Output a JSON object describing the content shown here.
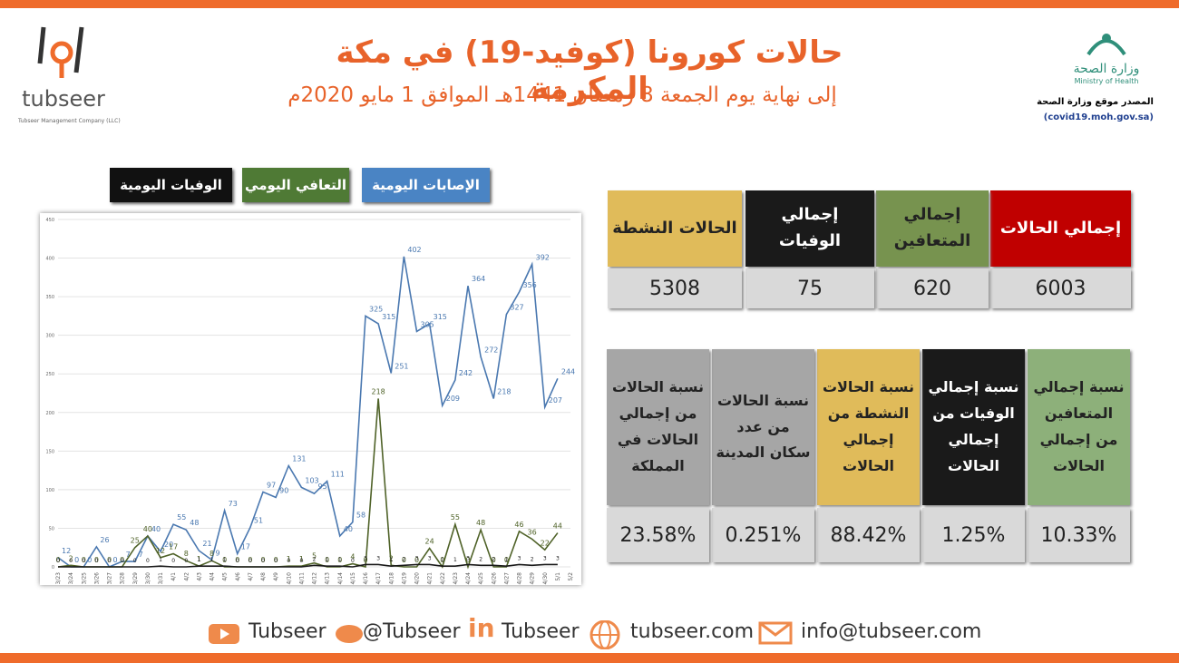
{
  "header": {
    "title": "حالات كورونا (كوفيد-19) في مكة المكرمة",
    "subtitle": "إلى نهاية يوم الجمعة 8 رمضان 1441هـ الموافق 1 مايو 2020م",
    "logo": "tubseer",
    "logo_sub": "Tubseer Management Company (LLC)",
    "ministry_ar": "وزارة الصحة",
    "ministry_en": "Ministry of Health",
    "source": "المصدر موقع وزارة الصحة",
    "source_url": "(covid19.moh.gov.sa)"
  },
  "stats": [
    {
      "label": "إجمالي الحالات",
      "value": "6003",
      "color": "#c00000"
    },
    {
      "label": "إجمالي المتعافين",
      "value": "620",
      "color": "#77934f"
    },
    {
      "label": "إجمالي الوفيات",
      "value": "75",
      "color": "#1a1a1a"
    },
    {
      "label": "الحالات النشطة",
      "value": "5308",
      "color": "#e0bb5a"
    }
  ],
  "ratios": [
    {
      "label": "نسبة إجمالي المتعافين من إجمالي الحالات",
      "value": "10.33%",
      "color": "#8db07a"
    },
    {
      "label": "نسبة إجمالي الوفيات من إجمالي الحالات",
      "value": "1.25%",
      "color": "#1a1a1a"
    },
    {
      "label": "نسبة الحالات النشطة من إجمالي الحالات",
      "value": "88.42%",
      "color": "#e0bb5a"
    },
    {
      "label": "نسبة الحالات من عدد سكان المدينة",
      "value": "0.251%",
      "color": "#a6a6a6"
    },
    {
      "label": "نسبة الحالات من إجمالي الحالات في المملكة",
      "value": "23.58%",
      "color": "#a6a6a6"
    }
  ],
  "footer": [
    "Tubseer",
    "@Tubseer",
    "Tubseer",
    "tubseer.com",
    "info@tubseer.com"
  ],
  "chart_data": {
    "type": "line",
    "categories": [
      "3/23",
      "3/24",
      "3/25",
      "3/26",
      "3/27",
      "3/28",
      "3/29",
      "3/30",
      "3/31",
      "4/1",
      "4/2",
      "4/3",
      "4/4",
      "4/5",
      "4/6",
      "4/7",
      "4/8",
      "4/9",
      "4/10",
      "4/11",
      "4/12",
      "4/13",
      "4/14",
      "4/15",
      "4/16",
      "4/17",
      "4/18",
      "4/19",
      "4/20",
      "4/21",
      "4/22",
      "4/23",
      "4/24",
      "4/25",
      "4/26",
      "4/27",
      "4/28",
      "4/29",
      "4/30",
      "5/1",
      "5/2"
    ],
    "series": [
      {
        "name": "الإصابات اليومية",
        "color": "#4a78b0",
        "values": [
          12,
          0,
          0,
          26,
          0,
          7,
          7,
          40,
          20,
          55,
          48,
          21,
          9,
          73,
          17,
          51,
          97,
          90,
          131,
          103,
          95,
          111,
          40,
          58,
          325,
          315,
          251,
          402,
          305,
          315,
          209,
          242,
          364,
          272,
          218,
          327,
          356,
          392,
          207,
          244,
          null
        ]
      },
      {
        "name": "التعافي اليومي",
        "color": "#4f6228",
        "values": [
          0,
          2,
          0,
          0,
          0,
          0,
          25,
          40,
          12,
          17,
          8,
          1,
          8,
          0,
          0,
          0,
          0,
          0,
          1,
          1,
          5,
          0,
          0,
          4,
          0,
          218,
          2,
          0,
          0,
          24,
          0,
          55,
          0,
          48,
          0,
          0,
          46,
          36,
          22,
          44,
          null
        ]
      },
      {
        "name": "الوفيات اليومية",
        "color": "#1a1a1a",
        "values": [
          0,
          0,
          0,
          0,
          0,
          0,
          0,
          0,
          1,
          0,
          0,
          1,
          1,
          1,
          0,
          0,
          0,
          0,
          0,
          0,
          2,
          1,
          1,
          0,
          3,
          3,
          1,
          2,
          3,
          3,
          1,
          1,
          3,
          2,
          2,
          1,
          3,
          2,
          3,
          3,
          null
        ]
      }
    ],
    "ylim": [
      0,
      450
    ],
    "yticks": [
      0,
      50,
      100,
      150,
      200,
      250,
      300,
      350,
      400,
      450
    ],
    "grid": true
  }
}
